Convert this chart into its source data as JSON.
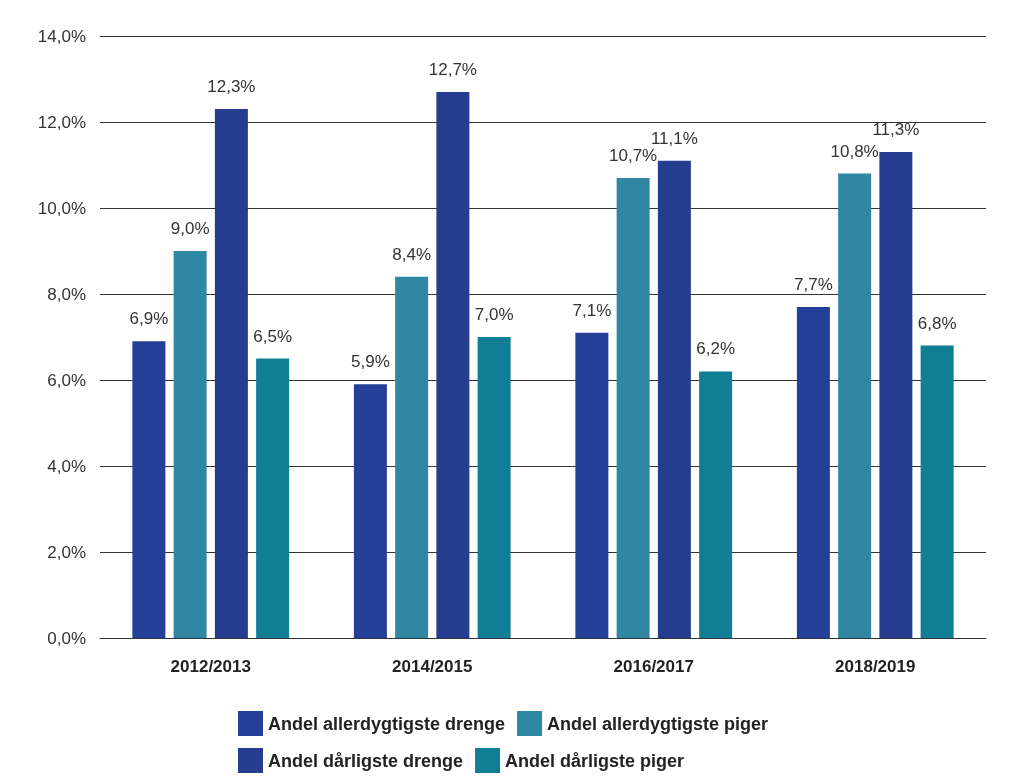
{
  "chart_data": {
    "type": "bar",
    "categories": [
      "2012/2013",
      "2014/2015",
      "2016/2017",
      "2018/2019"
    ],
    "series": [
      {
        "name": "Andel allerdygtigste drenge",
        "color": "#233f98",
        "values": [
          6.9,
          5.9,
          7.1,
          7.7
        ],
        "value_labels": [
          "6,9%",
          "5,9%",
          "7,1%",
          "7,7%"
        ]
      },
      {
        "name": "Andel allerdygtigste piger",
        "color": "#2f87a3",
        "values": [
          9.0,
          8.4,
          10.7,
          10.8
        ],
        "value_labels": [
          "9,0%",
          "8,4%",
          "10,7%",
          "10,8%"
        ]
      },
      {
        "name": "Andel dårligste drenge",
        "color": "#263d8f",
        "values": [
          12.3,
          12.7,
          11.1,
          11.3
        ],
        "value_labels": [
          "12,3%",
          "12,7%",
          "11,1%",
          "11,3%"
        ]
      },
      {
        "name": "Andel dårligste piger",
        "color": "#107e95",
        "values": [
          6.5,
          7.0,
          6.2,
          6.8
        ],
        "value_labels": [
          "6,5%",
          "7,0%",
          "6,2%",
          "6,8%"
        ]
      }
    ],
    "ylim": [
      0,
      14
    ],
    "yticks": [
      {
        "value": 0,
        "label": "0,0%"
      },
      {
        "value": 2,
        "label": "2,0%"
      },
      {
        "value": 4,
        "label": "4,0%"
      },
      {
        "value": 6,
        "label": "6,0%"
      },
      {
        "value": 8,
        "label": "8,0%"
      },
      {
        "value": 10,
        "label": "10,0%"
      },
      {
        "value": 12,
        "label": "12,0%"
      },
      {
        "value": 14,
        "label": "14,0%"
      }
    ],
    "grid": "y",
    "legend": "bottom"
  }
}
